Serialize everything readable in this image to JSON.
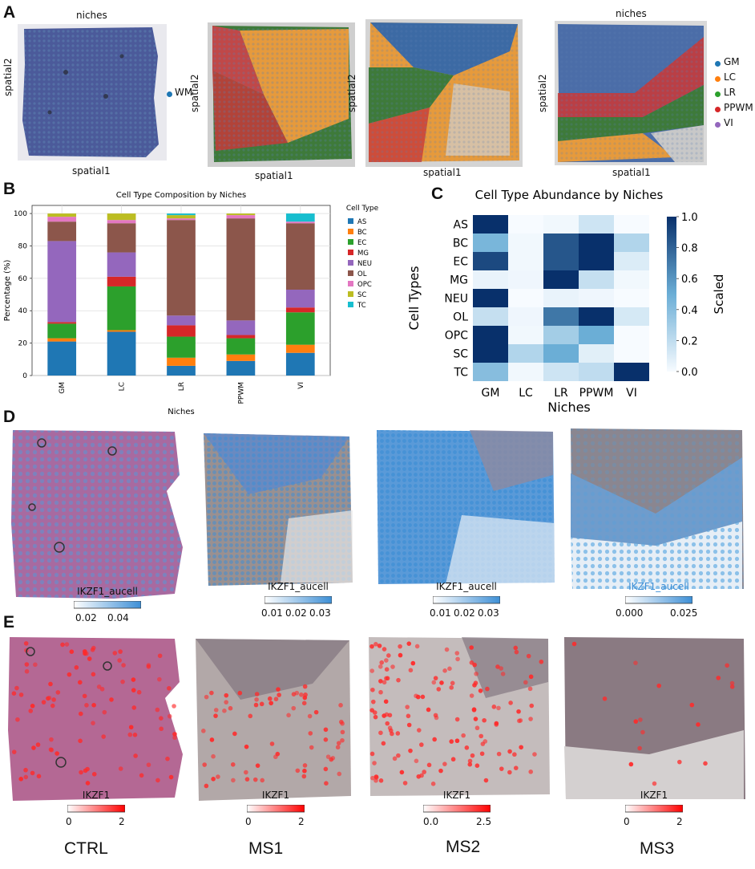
{
  "panels": {
    "A": "A",
    "B": "B",
    "C": "C",
    "D": "D",
    "E": "E"
  },
  "panelA": {
    "title_1": "niches",
    "title_4": "niches",
    "ylabel": "spatial2",
    "xlabel": "spatial1",
    "legend_1": [
      {
        "label": "WM",
        "color": "#1f77b4"
      }
    ],
    "legend_4": [
      {
        "label": "GM",
        "color": "#1f77b4"
      },
      {
        "label": "LC",
        "color": "#ff7f0e"
      },
      {
        "label": "LR",
        "color": "#2ca02c"
      },
      {
        "label": "PPWM",
        "color": "#d62728"
      },
      {
        "label": "VI",
        "color": "#9467bd"
      }
    ]
  },
  "chart_data": [
    {
      "type": "bar",
      "title": "Cell Type Composition by Niches",
      "xlabel": "Niches",
      "ylabel": "Percentage (%)",
      "ylim": [
        0,
        105
      ],
      "yticks": [
        "0",
        "20",
        "40",
        "60",
        "80",
        "100"
      ],
      "categories": [
        "GM",
        "LC",
        "LR",
        "PPWM",
        "VI"
      ],
      "legend_title": "Cell Type",
      "legend_position": "right",
      "stacked": true,
      "grid": true,
      "series": [
        {
          "name": "AS",
          "color": "#1f77b4",
          "values": [
            21,
            27,
            6,
            9,
            14
          ]
        },
        {
          "name": "BC",
          "color": "#ff7f0e",
          "values": [
            2,
            1,
            5,
            4,
            5
          ]
        },
        {
          "name": "EC",
          "color": "#2ca02c",
          "values": [
            9,
            27,
            13,
            10,
            20
          ]
        },
        {
          "name": "MG",
          "color": "#d62728",
          "values": [
            1,
            6,
            7,
            2,
            3
          ]
        },
        {
          "name": "NEU",
          "color": "#9467bd",
          "values": [
            50,
            15,
            6,
            9,
            11
          ]
        },
        {
          "name": "OL",
          "color": "#8c564b",
          "values": [
            12,
            18,
            59,
            63,
            41
          ]
        },
        {
          "name": "OPC",
          "color": "#e377c2",
          "values": [
            3,
            2,
            1,
            2,
            1
          ]
        },
        {
          "name": "SC",
          "color": "#bcbd22",
          "values": [
            2,
            4,
            2,
            1,
            0
          ]
        },
        {
          "name": "TC",
          "color": "#17becf",
          "values": [
            0,
            0,
            1,
            0,
            5
          ]
        }
      ]
    },
    {
      "type": "heatmap",
      "title": "Cell Type Abundance by Niches",
      "xlabel": "Niches",
      "ylabel": "Cell Types",
      "x": [
        "GM",
        "LC",
        "LR",
        "PPWM",
        "VI"
      ],
      "y": [
        "AS",
        "BC",
        "EC",
        "MG",
        "NEU",
        "OL",
        "OPC",
        "SC",
        "TC"
      ],
      "colorbar_label": "Scaled",
      "colorbar_ticks": [
        "0.0",
        "0.2",
        "0.4",
        "0.6",
        "0.8",
        "1.0"
      ],
      "values": [
        [
          1.0,
          0.0,
          0.02,
          0.15,
          0.0
        ],
        [
          0.45,
          0.02,
          0.85,
          1.0,
          0.25
        ],
        [
          0.9,
          0.02,
          0.85,
          1.0,
          0.1
        ],
        [
          0.05,
          0.03,
          1.0,
          0.18,
          0.02
        ],
        [
          1.0,
          0.0,
          0.05,
          0.03,
          0.0
        ],
        [
          0.18,
          0.03,
          0.72,
          1.0,
          0.12
        ],
        [
          1.0,
          0.02,
          0.3,
          0.5,
          0.0
        ],
        [
          1.0,
          0.25,
          0.5,
          0.08,
          0.0
        ],
        [
          0.4,
          0.02,
          0.15,
          0.2,
          1.0
        ]
      ]
    }
  ],
  "panelD": {
    "colorbars": [
      {
        "label": "IKZF1_aucell",
        "ticks": [
          "0.02",
          "0.04"
        ]
      },
      {
        "label": "IKZF1_aucell",
        "ticks": [
          "0.01",
          "0.02",
          "0.03"
        ]
      },
      {
        "label": "IKZF1_aucell",
        "ticks": [
          "0.01",
          "0.02",
          "0.03"
        ]
      },
      {
        "label": "IKZF1_aucell",
        "ticks": [
          "0.000",
          "0.025"
        ]
      }
    ]
  },
  "panelE": {
    "colorbars": [
      {
        "label": "IKZF1",
        "ticks": [
          "0",
          "2"
        ]
      },
      {
        "label": "IKZF1",
        "ticks": [
          "0",
          "2"
        ]
      },
      {
        "label": "IKZF1",
        "ticks": [
          "0.0",
          "2.5"
        ]
      },
      {
        "label": "IKZF1",
        "ticks": [
          "0",
          "2"
        ]
      }
    ]
  },
  "samples": [
    "CTRL",
    "MS1",
    "MS2",
    "MS3"
  ]
}
